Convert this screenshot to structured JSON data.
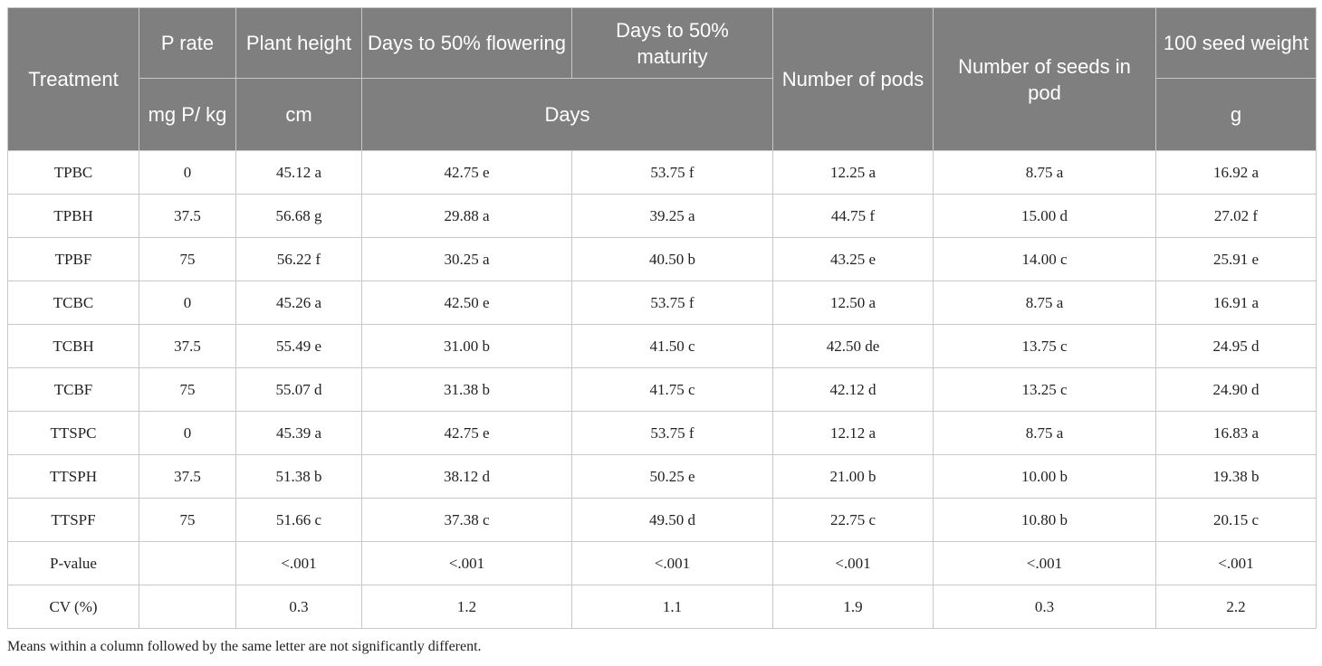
{
  "table": {
    "header": {
      "treatment": "Treatment",
      "p_rate": "P rate",
      "p_rate_unit": "mg P/ kg",
      "plant_height": "Plant height",
      "plant_height_unit": "cm",
      "days_flowering": "Days to 50% flowering",
      "days_maturity": "Days to 50% maturity",
      "days_unit": "Days",
      "pods": "Number of pods",
      "seeds_in_pod": "Number of seeds in pod",
      "seed_weight": "100 seed weight",
      "seed_weight_unit": "g"
    },
    "rows": [
      [
        "TPBC",
        "0",
        "45.12 a",
        "42.75 e",
        "53.75 f",
        "12.25 a",
        "8.75 a",
        "16.92 a"
      ],
      [
        "TPBH",
        "37.5",
        "56.68 g",
        "29.88 a",
        "39.25 a",
        "44.75 f",
        "15.00 d",
        "27.02 f"
      ],
      [
        "TPBF",
        "75",
        "56.22 f",
        "30.25 a",
        "40.50 b",
        "43.25 e",
        "14.00 c",
        "25.91 e"
      ],
      [
        "TCBC",
        "0",
        "45.26 a",
        "42.50 e",
        "53.75 f",
        "12.50 a",
        "8.75 a",
        "16.91 a"
      ],
      [
        "TCBH",
        "37.5",
        "55.49 e",
        "31.00 b",
        "41.50 c",
        "42.50 de",
        "13.75 c",
        "24.95 d"
      ],
      [
        "TCBF",
        "75",
        "55.07 d",
        "31.38 b",
        "41.75 c",
        "42.12 d",
        "13.25 c",
        "24.90 d"
      ],
      [
        "TTSPC",
        "0",
        "45.39 a",
        "42.75 e",
        "53.75 f",
        "12.12 a",
        "8.75 a",
        "16.83 a"
      ],
      [
        "TTSPH",
        "37.5",
        "51.38 b",
        "38.12 d",
        "50.25 e",
        "21.00 b",
        "10.00 b",
        "19.38 b"
      ],
      [
        "TTSPF",
        "75",
        "51.66 c",
        "37.38 c",
        "49.50 d",
        "22.75 c",
        "10.80 b",
        "20.15 c"
      ],
      [
        "P-value",
        "",
        "<.001",
        "<.001",
        "<.001",
        "<.001",
        "<.001",
        "<.001"
      ],
      [
        "CV (%)",
        "",
        "0.3",
        "1.2",
        "1.1",
        "1.9",
        "0.3",
        "2.2"
      ]
    ]
  },
  "footnote": "Means within a column followed by the same letter are not significantly different."
}
